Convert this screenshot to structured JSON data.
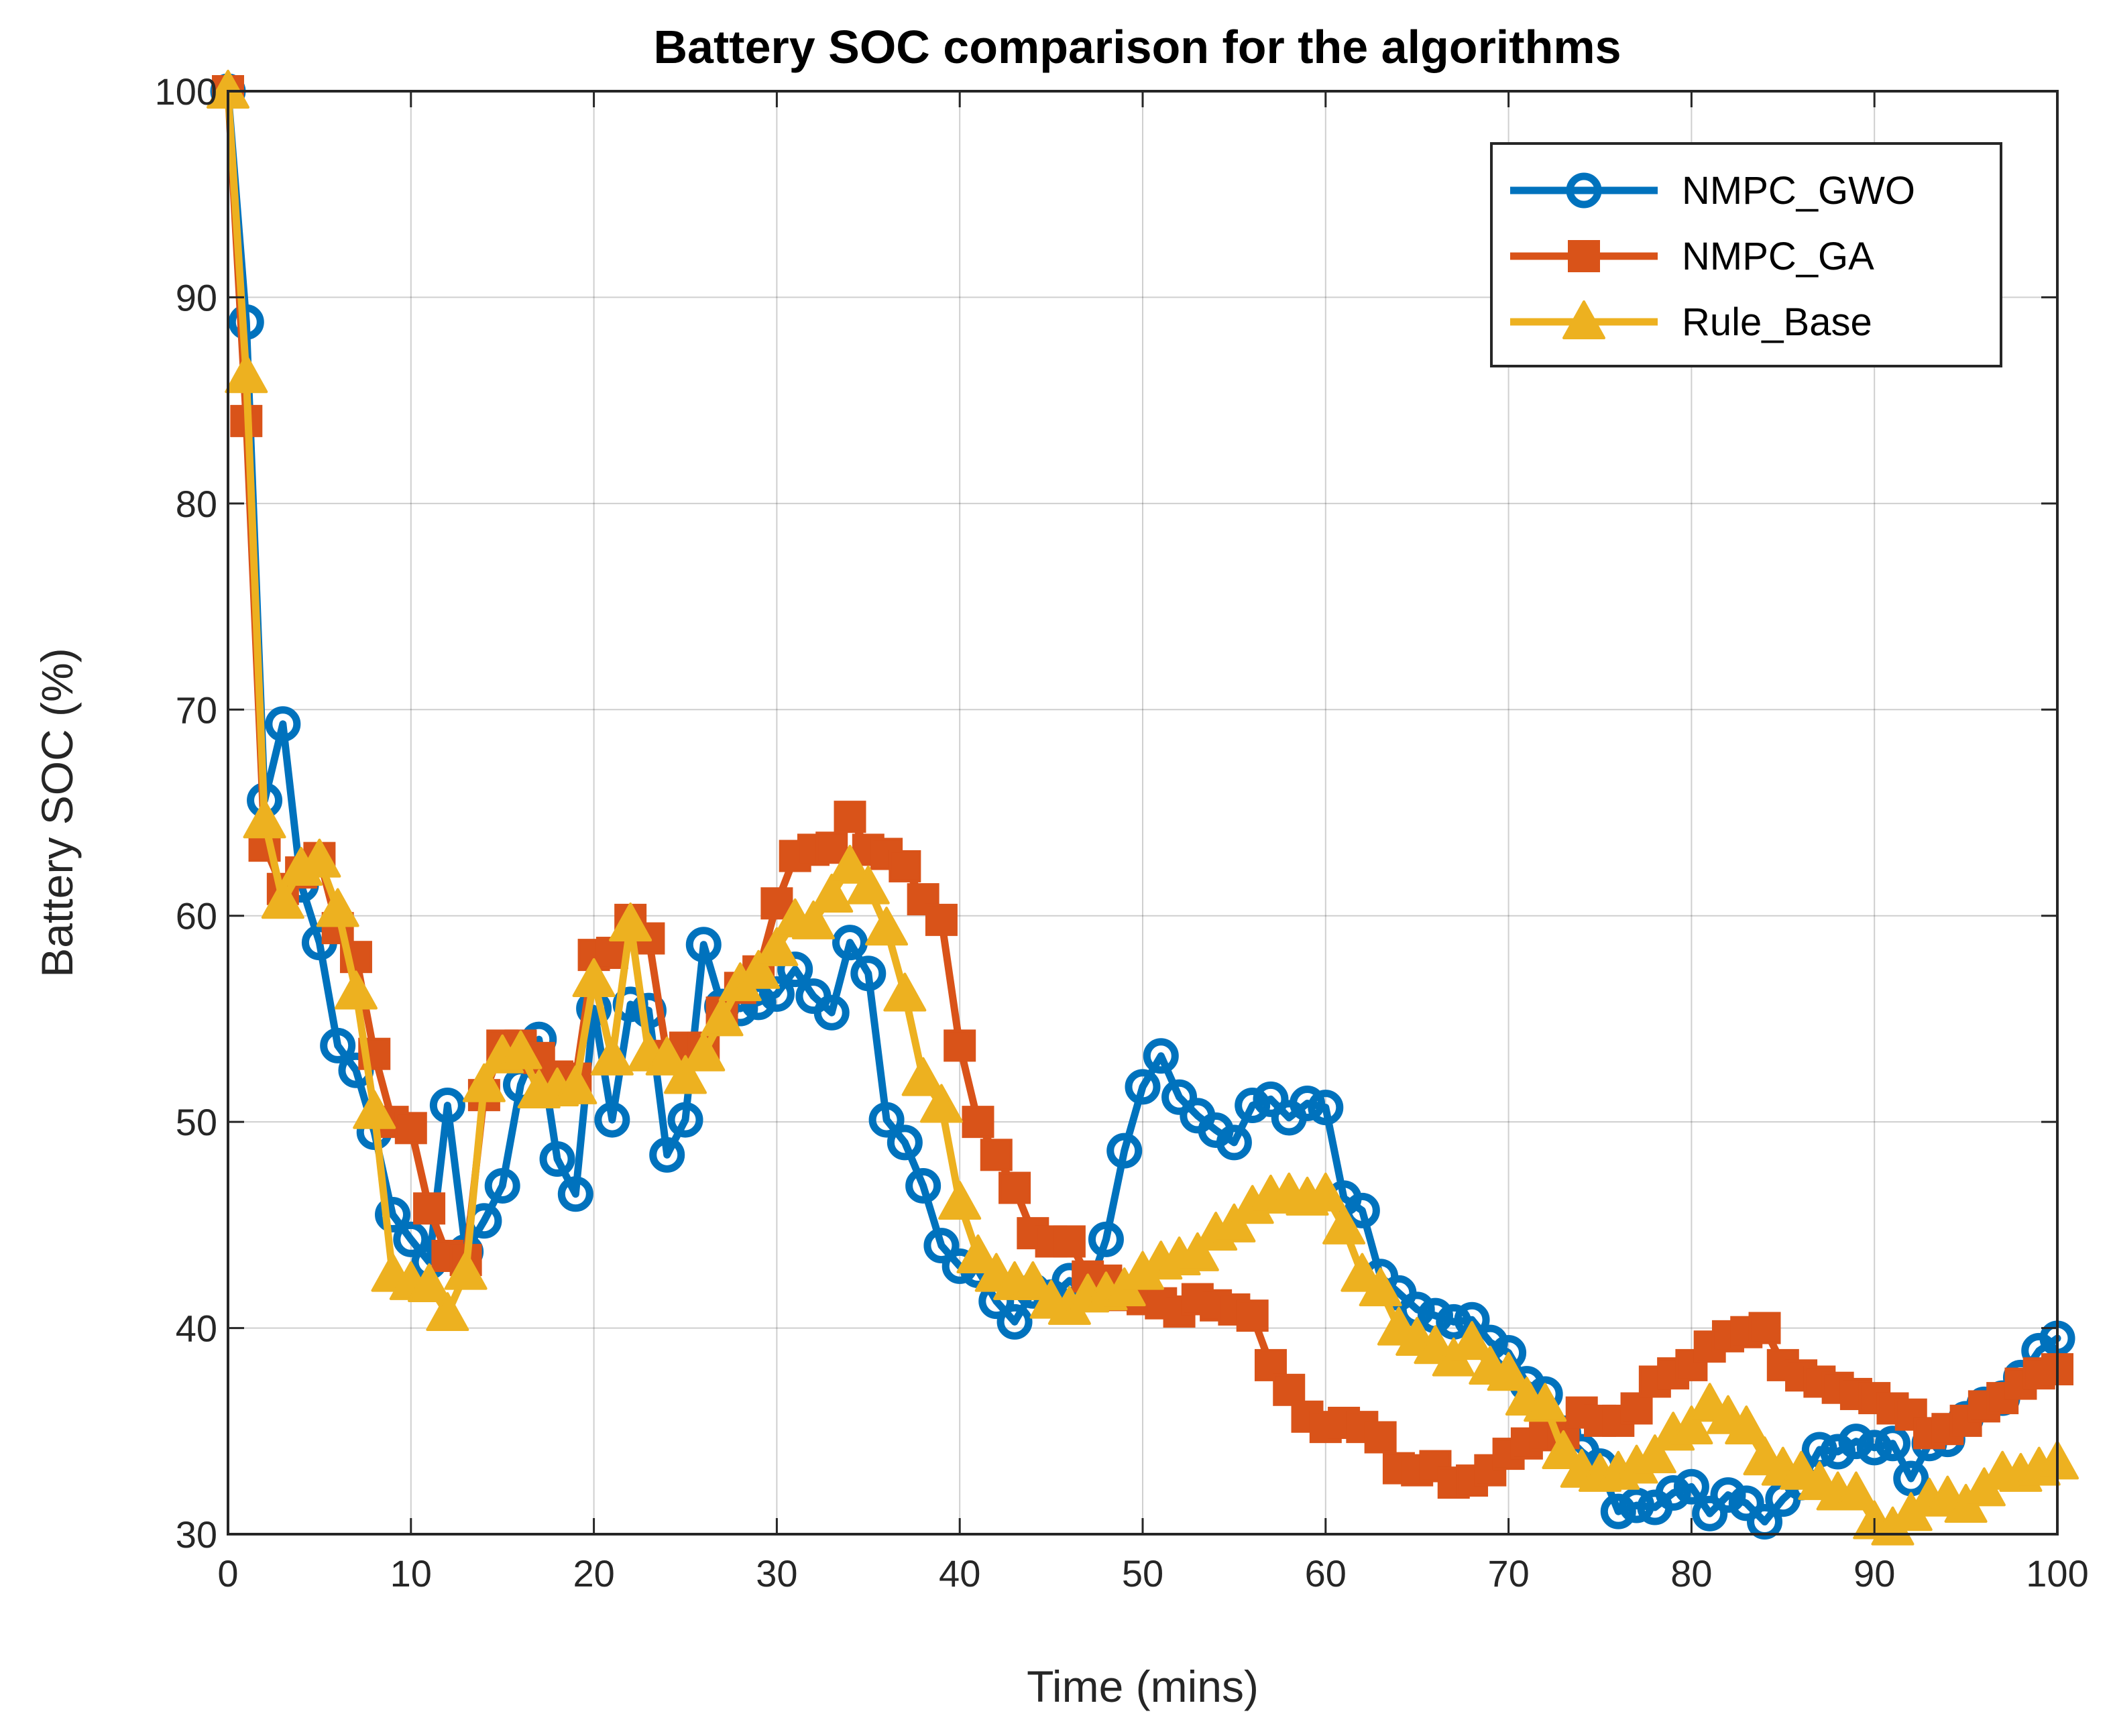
{
  "chart_data": {
    "type": "line",
    "title": "Battery SOC comparison for the algorithms",
    "xlabel": "Time (mins)",
    "ylabel": "Battery SOC (%)",
    "xlim": [
      0,
      100
    ],
    "ylim": [
      30,
      100
    ],
    "xticks": [
      0,
      10,
      20,
      30,
      40,
      50,
      60,
      70,
      80,
      90,
      100
    ],
    "yticks": [
      30,
      40,
      50,
      60,
      70,
      80,
      90,
      100
    ],
    "grid": true,
    "legend_position": "top-right",
    "series": [
      {
        "name": "NMPC_GWO",
        "color": "#0072BD",
        "marker": "circle",
        "x": [
          0,
          1,
          2,
          3,
          4,
          5,
          6,
          7,
          8,
          9,
          10,
          11,
          12,
          13,
          14,
          15,
          16,
          17,
          18,
          19,
          20,
          21,
          22,
          23,
          24,
          25,
          26,
          27,
          28,
          29,
          30,
          31,
          32,
          33,
          34,
          35,
          36,
          37,
          38,
          39,
          40,
          41,
          42,
          43,
          44,
          45,
          46,
          47,
          48,
          49,
          50,
          51,
          52,
          53,
          54,
          55,
          56,
          57,
          58,
          59,
          60,
          61,
          62,
          63,
          64,
          65,
          66,
          67,
          68,
          69,
          70,
          71,
          72,
          73,
          74,
          75,
          76,
          77,
          78,
          79,
          80,
          81,
          82,
          83,
          84,
          85,
          86,
          87,
          88,
          89,
          90,
          91,
          92,
          93,
          94,
          95,
          96,
          97,
          98,
          99,
          100
        ],
        "values": [
          100,
          88.8,
          65.6,
          69.3,
          61.5,
          58.7,
          53.7,
          52.5,
          49.5,
          45.5,
          44.3,
          43.2,
          50.8,
          43.7,
          45.2,
          46.9,
          51.8,
          54,
          48.2,
          46.5,
          55.5,
          50.1,
          55.7,
          55.4,
          48.4,
          50.1,
          58.6,
          55.6,
          55.5,
          55.8,
          56.2,
          57.4,
          56.1,
          55.3,
          58.7,
          57.2,
          50.1,
          49,
          46.9,
          44,
          43,
          42.8,
          41.3,
          40.3,
          41.8,
          41.5,
          42.3,
          41.7,
          44.3,
          48.6,
          51.7,
          53.2,
          51.2,
          50.3,
          49.6,
          49,
          50.8,
          51.1,
          50.2,
          50.9,
          50.7,
          46.3,
          45.7,
          42.5,
          41.7,
          40.9,
          40.6,
          40.3,
          40.4,
          39.3,
          38.8,
          37.3,
          36.8,
          34.9,
          34,
          33.3,
          31.1,
          31.4,
          31.3,
          32,
          32.3,
          31,
          31.9,
          31.5,
          30.6,
          31.7,
          32.5,
          34.1,
          34,
          34.5,
          34.2,
          34.4,
          32.7,
          34.4,
          34.6,
          35.6,
          36.3,
          36.6,
          37.6,
          38.9,
          39.5
        ]
      },
      {
        "name": "NMPC_GA",
        "color": "#D95319",
        "marker": "square",
        "x": [
          0,
          1,
          2,
          3,
          4,
          5,
          6,
          7,
          8,
          9,
          10,
          11,
          12,
          13,
          14,
          15,
          16,
          17,
          18,
          19,
          20,
          21,
          22,
          23,
          24,
          25,
          26,
          27,
          28,
          29,
          30,
          31,
          32,
          33,
          34,
          35,
          36,
          37,
          38,
          39,
          40,
          41,
          42,
          43,
          44,
          45,
          46,
          47,
          48,
          49,
          50,
          51,
          52,
          53,
          54,
          55,
          56,
          57,
          58,
          59,
          60,
          61,
          62,
          63,
          64,
          65,
          66,
          67,
          68,
          69,
          70,
          71,
          72,
          73,
          74,
          75,
          76,
          77,
          78,
          79,
          80,
          81,
          82,
          83,
          84,
          85,
          86,
          87,
          88,
          89,
          90,
          91,
          92,
          93,
          94,
          95,
          96,
          97,
          98,
          99,
          100
        ],
        "values": [
          100,
          84,
          63.4,
          61.3,
          62.1,
          62.8,
          59.4,
          58,
          53.3,
          50,
          49.7,
          45.8,
          43.5,
          43.3,
          51.3,
          53.7,
          53.7,
          53.1,
          52.2,
          52.1,
          58.1,
          58.2,
          59.8,
          58.9,
          53.2,
          53.6,
          53.6,
          55.3,
          56.5,
          57.3,
          60.6,
          62.9,
          63.2,
          63.3,
          64.8,
          63.2,
          63,
          62.4,
          60.8,
          59.8,
          53.7,
          50,
          48.4,
          46.8,
          44.6,
          44.2,
          44.2,
          42.5,
          42.3,
          41.6,
          41.4,
          41.2,
          40.8,
          41.4,
          41.1,
          40.9,
          40.6,
          38.2,
          37,
          35.7,
          35.2,
          35.4,
          35.2,
          34.7,
          33.2,
          33.1,
          33.3,
          32.5,
          32.6,
          33.1,
          33.9,
          34.4,
          34.8,
          34.9,
          35.9,
          35.5,
          35.5,
          36.1,
          37.4,
          37.8,
          38.2,
          39.1,
          39.6,
          39.8,
          40,
          38.2,
          37.7,
          37.4,
          37.1,
          36.8,
          36.6,
          36.1,
          35.8,
          34.9,
          35.1,
          35.5,
          36.2,
          36.6,
          37.3,
          37.8,
          38
        ]
      },
      {
        "name": "Rule_Base",
        "color": "#EDB120",
        "marker": "triangle",
        "x": [
          0,
          1,
          2,
          3,
          4,
          5,
          6,
          7,
          8,
          9,
          10,
          11,
          12,
          13,
          14,
          15,
          16,
          17,
          18,
          19,
          20,
          21,
          22,
          23,
          24,
          25,
          26,
          27,
          28,
          29,
          30,
          31,
          32,
          33,
          34,
          35,
          36,
          37,
          38,
          39,
          40,
          41,
          42,
          43,
          44,
          45,
          46,
          47,
          48,
          49,
          50,
          51,
          52,
          53,
          54,
          55,
          56,
          57,
          58,
          59,
          60,
          61,
          62,
          63,
          64,
          65,
          66,
          67,
          68,
          69,
          70,
          71,
          72,
          73,
          74,
          75,
          76,
          77,
          78,
          79,
          80,
          81,
          82,
          83,
          84,
          85,
          86,
          87,
          88,
          89,
          90,
          91,
          92,
          93,
          94,
          95,
          96,
          97,
          98,
          99,
          100
        ],
        "values": [
          100,
          86.2,
          64.6,
          60.7,
          62.3,
          62.7,
          60.3,
          56.3,
          50.5,
          42.6,
          42.2,
          42.1,
          40.7,
          42.7,
          51.8,
          53.2,
          53.4,
          51.5,
          51.6,
          51.7,
          56.9,
          53.1,
          59.6,
          53.3,
          53.1,
          52.2,
          53.3,
          55,
          56.7,
          57.3,
          58.4,
          59.8,
          59.7,
          61,
          62.4,
          61.4,
          59.4,
          56.2,
          52.1,
          50.8,
          46.1,
          43.5,
          42.6,
          42.2,
          42.2,
          41.3,
          41,
          41.6,
          41.7,
          41.9,
          42.7,
          43.2,
          43.4,
          43.6,
          44.6,
          45,
          45.9,
          46.4,
          46.5,
          46.3,
          46.5,
          44.9,
          42.6,
          41.9,
          40,
          39.5,
          39.1,
          38.5,
          39.3,
          38.1,
          37.8,
          36.6,
          36.3,
          34,
          33.1,
          32.9,
          33,
          33.3,
          33.8,
          34.9,
          35.2,
          36.3,
          35.7,
          35.2,
          33.7,
          33.2,
          33,
          32.5,
          32,
          32,
          30.6,
          30.3,
          31,
          31.7,
          31.8,
          31.4,
          32.2,
          33,
          32.9,
          33.2,
          33.5
        ]
      }
    ]
  }
}
